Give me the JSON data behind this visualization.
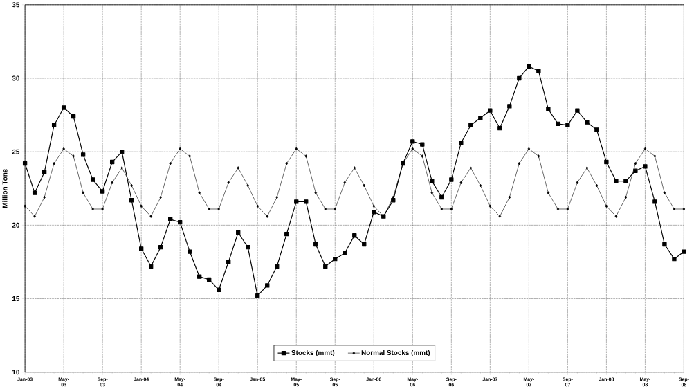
{
  "chart_data": {
    "type": "line",
    "ylabel": "Million Tons",
    "categories": [
      "Jan-03",
      null,
      null,
      null,
      "May-03",
      null,
      null,
      null,
      "Sep-03",
      null,
      null,
      null,
      "Jan-04",
      null,
      null,
      null,
      "May-04",
      null,
      null,
      null,
      "Sep-04",
      null,
      null,
      null,
      "Jan-05",
      null,
      null,
      null,
      "May-05",
      null,
      null,
      null,
      "Sep-05",
      null,
      null,
      null,
      "Jan-06",
      null,
      null,
      null,
      "May-06",
      null,
      null,
      null,
      "Sep-06",
      null,
      null,
      null,
      "Jan-07",
      null,
      null,
      null,
      "May-07",
      null,
      null,
      null,
      "Sep-07",
      null,
      null,
      null,
      "Jan-08",
      null,
      null,
      null,
      "May-08",
      null,
      null,
      null,
      "Sep-08"
    ],
    "series": [
      {
        "name": "Stocks (mmt)",
        "color": "#000000",
        "marker": "square",
        "values": [
          24.2,
          22.2,
          23.6,
          26.8,
          28.0,
          27.4,
          24.8,
          23.1,
          22.3,
          24.3,
          25.0,
          21.7,
          18.4,
          17.2,
          18.5,
          20.4,
          20.2,
          18.2,
          16.5,
          16.3,
          15.6,
          17.5,
          19.5,
          18.5,
          15.2,
          15.9,
          17.2,
          19.4,
          21.6,
          21.6,
          18.7,
          17.2,
          17.7,
          18.1,
          19.3,
          18.7,
          20.9,
          20.6,
          21.7,
          24.2,
          25.7,
          25.5,
          23.0,
          21.9,
          23.1,
          25.6,
          26.8,
          27.3,
          27.8,
          26.6,
          28.1,
          30.0,
          30.8,
          30.5,
          27.9,
          26.9,
          26.8,
          27.8,
          27.0,
          26.5,
          24.3,
          23.0,
          23.0,
          23.7,
          24.0,
          21.6,
          18.7,
          17.7,
          18.2
        ]
      },
      {
        "name": "Normal Stocks (mmt)",
        "color": "#000000",
        "marker": "diamond",
        "values": [
          21.3,
          20.6,
          21.9,
          24.2,
          25.2,
          24.7,
          22.2,
          21.1,
          21.1,
          22.9,
          23.9,
          22.7,
          21.3,
          20.6,
          21.9,
          24.2,
          25.2,
          24.7,
          22.2,
          21.1,
          21.1,
          22.9,
          23.9,
          22.7,
          21.3,
          20.6,
          21.9,
          24.2,
          25.2,
          24.7,
          22.2,
          21.1,
          21.1,
          22.9,
          23.9,
          22.7,
          21.3,
          20.6,
          21.9,
          24.2,
          25.2,
          24.7,
          22.2,
          21.1,
          21.1,
          22.9,
          23.9,
          22.7,
          21.3,
          20.6,
          21.9,
          24.2,
          25.2,
          24.7,
          22.2,
          21.1,
          21.1,
          22.9,
          23.9,
          22.7,
          21.3,
          20.6,
          21.9,
          24.2,
          25.2,
          24.7,
          22.2,
          21.1,
          21.1
        ]
      }
    ],
    "ylim": [
      10,
      35
    ],
    "yticks": [
      10,
      15,
      20,
      25,
      30,
      35
    ],
    "grid": true,
    "legend": "bottom",
    "line_style": "solid"
  }
}
